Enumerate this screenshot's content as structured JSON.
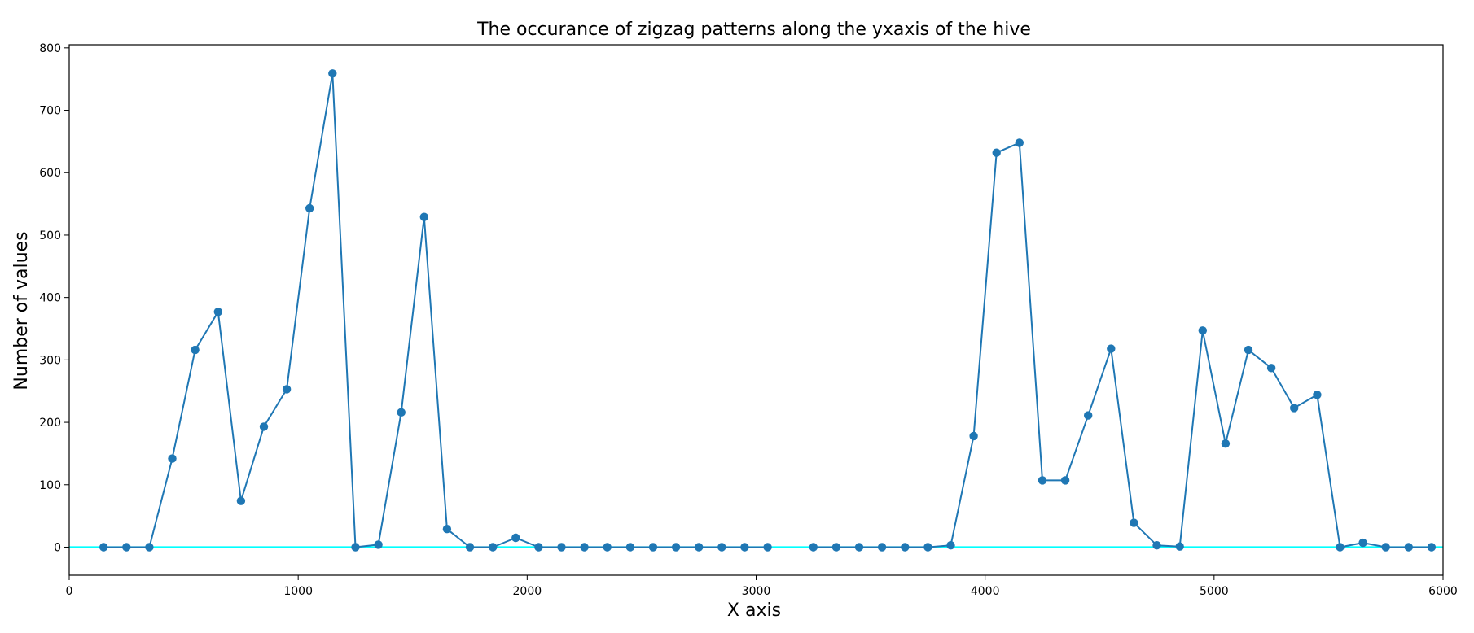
{
  "chart_data": {
    "type": "line",
    "title": "The occurance of zigzag patterns along the yxaxis of the hive",
    "xlabel": "X axis",
    "ylabel": "Number of values",
    "xlim": [
      0,
      6000
    ],
    "ylim": [
      -45,
      805
    ],
    "xticks": [
      0,
      1000,
      2000,
      3000,
      4000,
      5000,
      6000
    ],
    "yticks": [
      0,
      100,
      200,
      300,
      400,
      500,
      600,
      700,
      800
    ],
    "grid": false,
    "legend": "none",
    "reference_line": {
      "y": 0,
      "color": "#00ffff"
    },
    "series": [
      {
        "color": "#1f77b4",
        "marker": "circle",
        "segments": [
          {
            "x": [
              150,
              250,
              350,
              450,
              550,
              650,
              750,
              850,
              950,
              1050,
              1150,
              1250,
              1350,
              1450,
              1550,
              1650,
              1750,
              1850,
              1950,
              2050,
              2150,
              2250,
              2350,
              2450,
              2550,
              2650,
              2750,
              2850,
              2950,
              3050
            ],
            "y": [
              0,
              0,
              0,
              142,
              316,
              377,
              74,
              193,
              253,
              543,
              759,
              0,
              4,
              216,
              529,
              29,
              0,
              0,
              15,
              0,
              0,
              0,
              0,
              0,
              0,
              0,
              0,
              0,
              0,
              0
            ]
          },
          {
            "x": [
              3250,
              3350,
              3450,
              3550,
              3650,
              3750,
              3850,
              3950,
              4050,
              4150,
              4250,
              4350,
              4450,
              4550,
              4650,
              4750,
              4850,
              4950,
              5050,
              5150,
              5250,
              5350,
              5450,
              5550,
              5650,
              5750,
              5850,
              5950
            ],
            "y": [
              0,
              0,
              0,
              0,
              0,
              0,
              3,
              178,
              632,
              648,
              107,
              107,
              211,
              318,
              39,
              3,
              1,
              347,
              166,
              316,
              287,
              223,
              244,
              0,
              7,
              0,
              0,
              0
            ]
          }
        ]
      }
    ]
  }
}
